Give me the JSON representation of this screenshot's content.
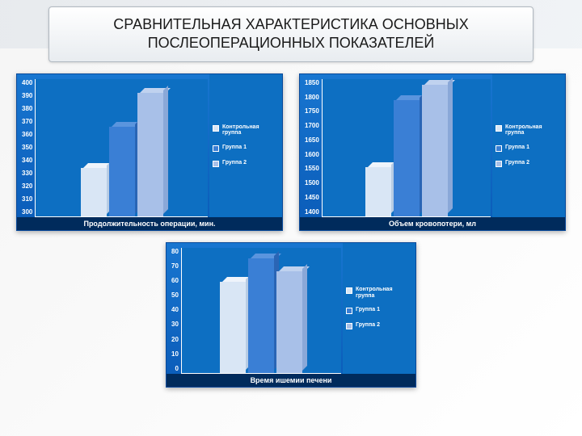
{
  "title": "СРАВНИТЕЛЬНАЯ ХАРАКТЕРИСТИКА ОСНОВНЫХ ПОСЛЕОПЕРАЦИОННЫХ ПОКАЗАТЕЛЕЙ",
  "legend": {
    "items": [
      "Контрольная группа",
      "Группа 1",
      "Группа 2"
    ],
    "colors": [
      "#d9e6f5",
      "#3a7fd5",
      "#a8c0e8"
    ]
  },
  "bar_colors": {
    "control": {
      "front": "#d9e6f5",
      "top": "#eef4fb",
      "side": "#b8cce4"
    },
    "group1": {
      "front": "#3a7fd5",
      "top": "#5a95de",
      "side": "#2a65b5"
    },
    "group2": {
      "front": "#a8c0e8",
      "top": "#c0d2ef",
      "side": "#8aa8d8"
    }
  },
  "charts": [
    {
      "id": "chart1",
      "xlabel": "Продолжительность операции, мин.",
      "ylim": [
        300,
        400
      ],
      "yticks": [
        400,
        390,
        380,
        370,
        360,
        350,
        340,
        330,
        320,
        310,
        300
      ],
      "values": {
        "control": 335,
        "group1": 365,
        "group2": 390
      }
    },
    {
      "id": "chart2",
      "xlabel": "Объем кровопотери, мл",
      "ylim": [
        1400,
        1850
      ],
      "yticks": [
        1850,
        1800,
        1750,
        1700,
        1650,
        1600,
        1550,
        1500,
        1450,
        1400
      ],
      "values": {
        "control": 1560,
        "group1": 1780,
        "group2": 1830
      }
    },
    {
      "id": "chart3",
      "xlabel": "Время ишемии печени",
      "ylim": [
        0,
        80
      ],
      "yticks": [
        80,
        70,
        60,
        50,
        40,
        30,
        20,
        10,
        0
      ],
      "values": {
        "control": 58,
        "group1": 73,
        "group2": 65
      }
    }
  ],
  "style": {
    "panel_bg_top": "#1876d0",
    "panel_bg_bottom": "#0a5bb8",
    "plot_bg": "#0d6fc2",
    "xlabel_bg": "#002b5c",
    "axis_color": "#ffffff",
    "tick_font_size": 8,
    "xlabel_font_size": 9
  }
}
